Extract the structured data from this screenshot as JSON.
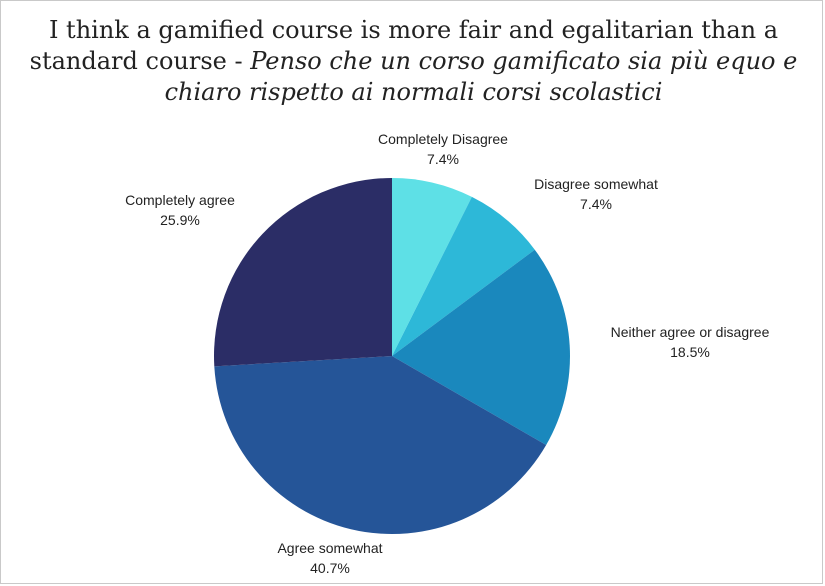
{
  "chart_data": {
    "type": "pie",
    "title": "I think a gamified course is more fair and egalitarian than a standard course - ",
    "title_italic": "Penso che un corso gamificato sia più equo e chiaro rispetto ai normali corsi scolastici",
    "slices": [
      {
        "label": "Completely Disagree",
        "value": 7.4,
        "display": "7.4%",
        "color": "#5ee0e6"
      },
      {
        "label": "Disagree somewhat",
        "value": 7.4,
        "display": "7.4%",
        "color": "#2db8d8"
      },
      {
        "label": "Neither agree or disagree",
        "value": 18.5,
        "display": "18.5%",
        "color": "#1a88bd"
      },
      {
        "label": "Agree somewhat",
        "value": 40.7,
        "display": "40.7%",
        "color": "#255598"
      },
      {
        "label": "Completely agree",
        "value": 25.9,
        "display": "25.9%",
        "color": "#2b2d66"
      }
    ],
    "start_angle": "top",
    "direction": "clockwise",
    "legend": "none"
  }
}
